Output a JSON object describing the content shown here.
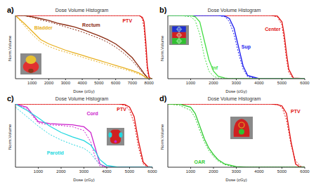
{
  "chart_data": [
    {
      "type": "line",
      "title": "Dose Volume Histogram",
      "annotations": [
        {
          "text": "a)"
        }
      ],
      "x_label": "Dose (cGy)",
      "y_label": "Norm.Volume",
      "x": [
        0,
        500,
        1000,
        1500,
        2000,
        2500,
        3000,
        3500,
        4000,
        4500,
        5000,
        5500,
        6000,
        6500,
        7000,
        7200,
        7400,
        7600,
        7700,
        7800,
        7900,
        8000,
        8100,
        8200
      ],
      "xlim": [
        0,
        8200
      ],
      "xticks": [
        1000,
        2000,
        3000,
        4000,
        5000,
        6000,
        7000,
        8000
      ],
      "ylim": [
        0,
        1
      ],
      "tick_labels": "x",
      "grid": false,
      "series": [
        {
          "name": "PTV",
          "color": "#e01010",
          "line_style": "solid",
          "values": [
            1,
            1,
            1,
            1,
            1,
            1,
            1,
            1,
            1,
            1,
            1,
            1,
            1,
            1,
            1,
            1,
            1,
            0.97,
            0.9,
            0.6,
            0.2,
            0.03,
            0,
            0
          ]
        },
        {
          "name": "PTV",
          "color": "#e01010",
          "line_style": "dotted",
          "values": [
            1,
            1,
            1,
            1,
            1,
            1,
            1,
            1,
            1,
            1,
            1,
            1,
            1,
            1,
            1,
            1,
            1,
            0.95,
            0.8,
            0.45,
            0.12,
            0.01,
            0,
            0
          ]
        },
        {
          "name": "Rectum",
          "color": "#8b2a10",
          "line_style": "solid",
          "values": [
            1,
            1,
            0.98,
            0.95,
            0.92,
            0.88,
            0.85,
            0.82,
            0.78,
            0.73,
            0.68,
            0.62,
            0.55,
            0.45,
            0.33,
            0.26,
            0.19,
            0.12,
            0.08,
            0.05,
            0.02,
            0,
            0,
            0
          ]
        },
        {
          "name": "Rectum",
          "color": "#8b2a10",
          "line_style": "dotted",
          "values": [
            1,
            1,
            0.97,
            0.93,
            0.9,
            0.86,
            0.82,
            0.78,
            0.74,
            0.69,
            0.64,
            0.58,
            0.5,
            0.4,
            0.28,
            0.22,
            0.16,
            0.1,
            0.07,
            0.04,
            0.02,
            0,
            0,
            0
          ]
        },
        {
          "name": "Bladder",
          "color": "#e8b020",
          "line_style": "solid",
          "values": [
            1,
            0.88,
            0.75,
            0.62,
            0.55,
            0.5,
            0.45,
            0.41,
            0.37,
            0.33,
            0.29,
            0.25,
            0.21,
            0.17,
            0.13,
            0.11,
            0.09,
            0.06,
            0.04,
            0.02,
            0.01,
            0,
            0,
            0
          ]
        },
        {
          "name": "Bladder",
          "color": "#e8b020",
          "line_style": "dotted",
          "values": [
            1,
            0.85,
            0.7,
            0.58,
            0.51,
            0.46,
            0.42,
            0.38,
            0.34,
            0.3,
            0.26,
            0.22,
            0.18,
            0.15,
            0.11,
            0.09,
            0.07,
            0.05,
            0.03,
            0.02,
            0.01,
            0,
            0,
            0
          ]
        }
      ]
    },
    {
      "type": "line",
      "title": "Dose Volume Histogram",
      "annotations": [
        {
          "text": "b)"
        }
      ],
      "x_label": "Dose (cGy)",
      "y_label": "Norm.Volume",
      "x": [
        0,
        500,
        1000,
        1200,
        1400,
        1600,
        1800,
        2000,
        2200,
        2500,
        2700,
        2900,
        3100,
        3300,
        3500,
        4000,
        4500,
        4800,
        5000,
        5100,
        5200,
        5300,
        5500,
        6000
      ],
      "xlim": [
        0,
        6000
      ],
      "xticks": [
        1000,
        2000,
        3000,
        4000,
        5000,
        6000
      ],
      "ylim": [
        0,
        1
      ],
      "tick_labels": "x",
      "grid": false,
      "series": [
        {
          "name": "Center",
          "color": "#e01010",
          "line_style": "solid",
          "values": [
            1,
            1,
            1,
            1,
            1,
            1,
            1,
            1,
            1,
            1,
            1,
            1,
            1,
            1,
            1,
            1,
            1,
            0.99,
            0.9,
            0.7,
            0.4,
            0.15,
            0.01,
            0
          ]
        },
        {
          "name": "Center",
          "color": "#e01010",
          "line_style": "dotted",
          "values": [
            1,
            1,
            1,
            1,
            1,
            1,
            1,
            1,
            1,
            1,
            1,
            1,
            1,
            1,
            1,
            1,
            1,
            0.98,
            0.85,
            0.6,
            0.3,
            0.1,
            0,
            0
          ]
        },
        {
          "name": "Sup",
          "color": "#1a1aee",
          "line_style": "solid",
          "values": [
            1,
            1,
            1,
            1,
            1,
            1,
            1,
            1,
            1,
            0.99,
            0.95,
            0.8,
            0.5,
            0.2,
            0.05,
            0,
            0,
            0,
            0,
            0,
            0,
            0,
            0,
            0
          ]
        },
        {
          "name": "Sup",
          "color": "#1a1aee",
          "line_style": "dotted",
          "values": [
            1,
            1,
            1,
            1,
            1,
            1,
            1,
            1,
            1,
            0.98,
            0.9,
            0.7,
            0.4,
            0.15,
            0.03,
            0,
            0,
            0,
            0,
            0,
            0,
            0,
            0,
            0
          ]
        },
        {
          "name": "Inf",
          "color": "#44dd44",
          "line_style": "solid",
          "values": [
            1,
            1,
            1,
            0.98,
            0.9,
            0.6,
            0.3,
            0.12,
            0.04,
            0.01,
            0,
            0,
            0,
            0,
            0,
            0,
            0,
            0,
            0,
            0,
            0,
            0,
            0,
            0
          ]
        },
        {
          "name": "Inf",
          "color": "#44dd44",
          "line_style": "dotted",
          "values": [
            1,
            1,
            0.98,
            0.92,
            0.7,
            0.35,
            0.12,
            0.04,
            0.01,
            0,
            0,
            0,
            0,
            0,
            0,
            0,
            0,
            0,
            0,
            0,
            0,
            0,
            0,
            0
          ]
        }
      ]
    },
    {
      "type": "line",
      "title": "Dose Volume Histogram",
      "annotations": [
        {
          "text": "c)"
        }
      ],
      "x_label": "Dose (cGy)",
      "y_label": "Norm.Volume",
      "x": [
        0,
        500,
        1000,
        1500,
        2000,
        2500,
        3000,
        3300,
        3500,
        3700,
        4000,
        4500,
        4800,
        5000,
        5200,
        5400,
        5600,
        5800,
        6000
      ],
      "xlim": [
        0,
        6000
      ],
      "xticks": [
        1000,
        2000,
        3000,
        4000,
        5000,
        6000
      ],
      "ylim": [
        0,
        1
      ],
      "tick_labels": "x",
      "grid": false,
      "series": [
        {
          "name": "PTV",
          "color": "#e01010",
          "line_style": "solid",
          "values": [
            1,
            1,
            1,
            1,
            1,
            1,
            1,
            1,
            1,
            1,
            1,
            1,
            0.99,
            0.95,
            0.8,
            0.4,
            0.08,
            0.01,
            0
          ]
        },
        {
          "name": "PTV",
          "color": "#e01010",
          "line_style": "dotted",
          "values": [
            1,
            1,
            1,
            1,
            1,
            1,
            1,
            1,
            1,
            1,
            1,
            1,
            0.98,
            0.9,
            0.7,
            0.3,
            0.05,
            0,
            0
          ]
        },
        {
          "name": "Cord",
          "color": "#cc22cc",
          "line_style": "solid",
          "values": [
            1,
            0.95,
            0.72,
            0.69,
            0.68,
            0.67,
            0.64,
            0.55,
            0.3,
            0.05,
            0,
            0,
            0,
            0,
            0,
            0,
            0,
            0,
            0
          ]
        },
        {
          "name": "Cord",
          "color": "#cc22cc",
          "line_style": "dotted",
          "values": [
            1,
            0.92,
            0.7,
            0.67,
            0.66,
            0.64,
            0.58,
            0.4,
            0.15,
            0.02,
            0,
            0,
            0,
            0,
            0,
            0,
            0,
            0,
            0
          ]
        },
        {
          "name": "Parotid",
          "color": "#22d8e0",
          "line_style": "solid",
          "values": [
            1,
            0.9,
            0.78,
            0.65,
            0.55,
            0.48,
            0.42,
            0.35,
            0.25,
            0.12,
            0.03,
            0,
            0,
            0,
            0,
            0,
            0,
            0,
            0
          ]
        },
        {
          "name": "Parotid",
          "color": "#22d8e0",
          "line_style": "dotted",
          "values": [
            0.95,
            0.8,
            0.65,
            0.52,
            0.43,
            0.36,
            0.3,
            0.22,
            0.12,
            0.05,
            0.01,
            0,
            0,
            0,
            0,
            0,
            0,
            0,
            0
          ]
        }
      ]
    },
    {
      "type": "line",
      "title": "Dose Volume Histogram",
      "annotations": [
        {
          "text": "d)"
        }
      ],
      "x_label": "Dose (cGy)",
      "y_label": "Norm.Volume",
      "x": [
        0,
        500,
        1000,
        1200,
        1400,
        1600,
        1800,
        2000,
        2200,
        2500,
        3000,
        3500,
        4000,
        4500,
        4800,
        5000,
        5200,
        5400,
        5600,
        5800,
        6000
      ],
      "xlim": [
        0,
        6000
      ],
      "xticks": [
        1000,
        2000,
        3000,
        4000,
        5000,
        6000
      ],
      "ylim": [
        0,
        1
      ],
      "tick_labels": "x",
      "grid": false,
      "series": [
        {
          "name": "PTV",
          "color": "#e01010",
          "line_style": "solid",
          "values": [
            1,
            1,
            1,
            1,
            1,
            1,
            1,
            1,
            1,
            1,
            1,
            1,
            1,
            1,
            0.99,
            0.97,
            0.85,
            0.4,
            0.05,
            0,
            0
          ]
        },
        {
          "name": "PTV",
          "color": "#e01010",
          "line_style": "dotted",
          "values": [
            1,
            1,
            1,
            1,
            1,
            1,
            1,
            1,
            1,
            1,
            1,
            1,
            1,
            1,
            0.99,
            0.95,
            0.75,
            0.35,
            0.1,
            0.02,
            0
          ]
        },
        {
          "name": "OAR",
          "color": "#33cc33",
          "line_style": "solid",
          "values": [
            1,
            1,
            0.95,
            0.85,
            0.65,
            0.45,
            0.3,
            0.2,
            0.12,
            0.05,
            0.01,
            0,
            0,
            0,
            0,
            0,
            0,
            0,
            0,
            0,
            0
          ]
        },
        {
          "name": "OAR",
          "color": "#33cc33",
          "line_style": "dotted",
          "values": [
            1,
            0.98,
            0.9,
            0.78,
            0.58,
            0.4,
            0.26,
            0.17,
            0.1,
            0.04,
            0,
            0,
            0,
            0,
            0,
            0,
            0,
            0,
            0,
            0,
            0
          ]
        }
      ]
    }
  ]
}
